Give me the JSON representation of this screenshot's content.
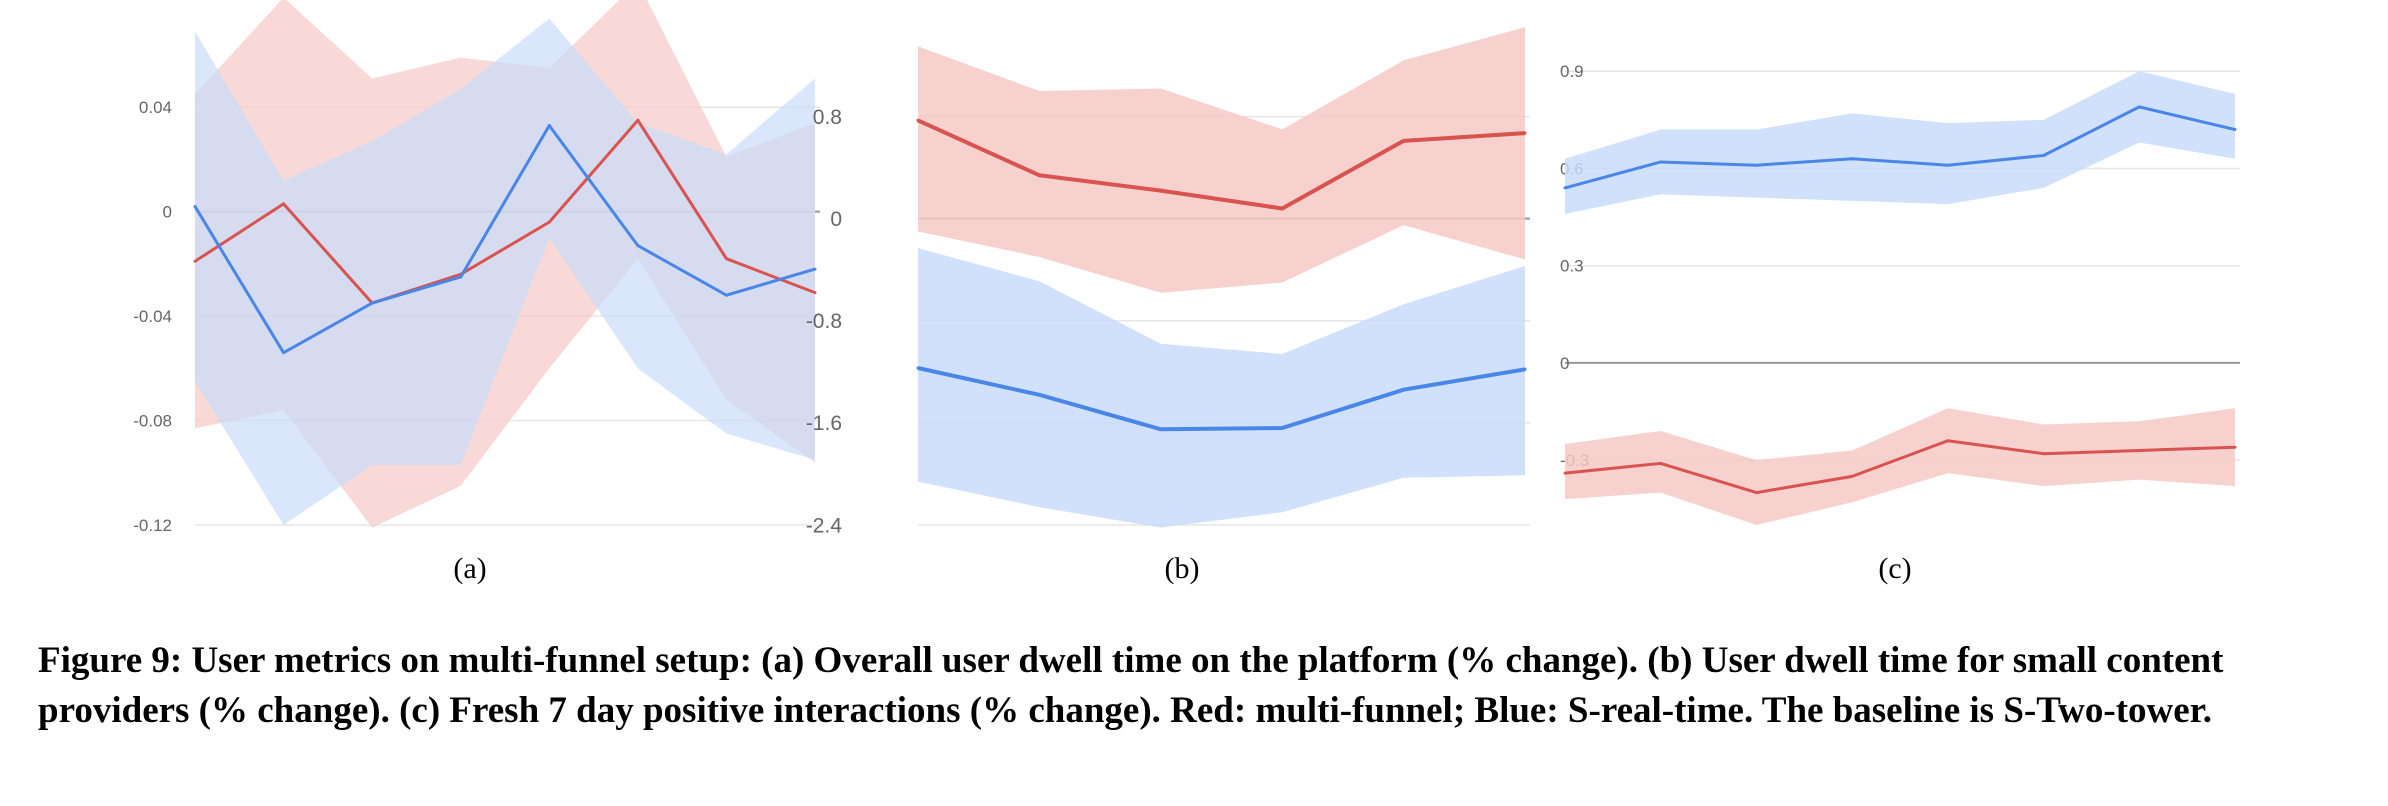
{
  "colors": {
    "red_line": "#d9534f",
    "red_band": "#f6c9c6",
    "blue_line": "#4a86e8",
    "blue_band": "#c9dcfa",
    "zero_line": "#999999",
    "grid": "#e6e6e6",
    "tick_text": "#666666"
  },
  "chart_data": [
    {
      "type": "line",
      "panel_label": "(a)",
      "ylim": [
        -0.12,
        0.06
      ],
      "yticks": [
        0.04,
        0,
        -0.04,
        -0.08,
        -0.12
      ],
      "ytick_labels": [
        "0.04",
        "0",
        "-0.04",
        "-0.08",
        "-0.12"
      ],
      "grid": true,
      "x": [
        1,
        2,
        3,
        4,
        5,
        6,
        7,
        8
      ],
      "series": [
        {
          "color": "red",
          "values": [
            -0.019,
            0.003,
            -0.035,
            -0.024,
            -0.004,
            0.035,
            -0.018,
            -0.031
          ],
          "upper": [
            0.045,
            0.082,
            0.051,
            0.059,
            0.055,
            0.088,
            0.021,
            0.034
          ],
          "lower": [
            -0.083,
            -0.076,
            -0.121,
            -0.105,
            -0.06,
            -0.018,
            -0.072,
            -0.096
          ]
        },
        {
          "color": "blue",
          "values": [
            0.002,
            -0.054,
            -0.035,
            -0.025,
            0.033,
            -0.013,
            -0.032,
            -0.022
          ],
          "upper": [
            0.069,
            0.012,
            0.027,
            0.047,
            0.074,
            0.034,
            0.022,
            0.051
          ],
          "lower": [
            -0.065,
            -0.12,
            -0.097,
            -0.097,
            -0.01,
            -0.06,
            -0.085,
            -0.095
          ]
        }
      ]
    },
    {
      "type": "line",
      "panel_label": "(b)",
      "ylim": [
        -2.4,
        1.4
      ],
      "yticks": [
        0.8,
        0,
        -0.8,
        -1.6,
        -2.4
      ],
      "ytick_labels": [
        "0.8",
        "0",
        "-0.8",
        "-1.6",
        "-2.4"
      ],
      "grid": true,
      "x": [
        1,
        2,
        3,
        4,
        5,
        6
      ],
      "series": [
        {
          "color": "red",
          "values": [
            0.77,
            0.34,
            0.22,
            0.08,
            0.61,
            0.67
          ],
          "upper": [
            1.35,
            1.0,
            1.02,
            0.7,
            1.24,
            1.5
          ],
          "lower": [
            -0.1,
            -0.3,
            -0.58,
            -0.5,
            -0.05,
            -0.32
          ]
        },
        {
          "color": "blue",
          "values": [
            -1.17,
            -1.38,
            -1.65,
            -1.64,
            -1.34,
            -1.18
          ],
          "upper": [
            -0.23,
            -0.49,
            -0.98,
            -1.06,
            -0.67,
            -0.37
          ],
          "lower": [
            -2.06,
            -2.26,
            -2.42,
            -2.3,
            -2.03,
            -2.01
          ]
        }
      ]
    },
    {
      "type": "line",
      "panel_label": "(c)",
      "ylim": [
        -0.5,
        0.95
      ],
      "yticks": [
        0.9,
        0.6,
        0.3,
        0,
        -0.3
      ],
      "ytick_labels": [
        "0.9",
        "0.6",
        "0.3",
        "0",
        "-0.3"
      ],
      "grid": true,
      "x": [
        1,
        2,
        3,
        4,
        5,
        6,
        7,
        8
      ],
      "series": [
        {
          "color": "red",
          "values": [
            -0.34,
            -0.31,
            -0.4,
            -0.35,
            -0.24,
            -0.28,
            -0.27,
            -0.26
          ],
          "upper": [
            -0.25,
            -0.21,
            -0.3,
            -0.27,
            -0.14,
            -0.19,
            -0.18,
            -0.14
          ],
          "lower": [
            -0.42,
            -0.4,
            -0.5,
            -0.43,
            -0.34,
            -0.38,
            -0.36,
            -0.38
          ]
        },
        {
          "color": "blue",
          "values": [
            0.54,
            0.62,
            0.61,
            0.63,
            0.61,
            0.64,
            0.79,
            0.72
          ],
          "upper": [
            0.63,
            0.72,
            0.72,
            0.77,
            0.74,
            0.75,
            0.9,
            0.83
          ],
          "lower": [
            0.46,
            0.52,
            0.51,
            0.5,
            0.49,
            0.54,
            0.68,
            0.63
          ]
        }
      ]
    }
  ],
  "caption": "Figure 9: User metrics on multi-funnel setup: (a) Overall user dwell time on the platform (% change). (b) User dwell time for small content providers (% change). (c) Fresh 7 day positive interactions (% change). Red: multi-funnel; Blue: S-real-time. The baseline is S-Two-tower."
}
